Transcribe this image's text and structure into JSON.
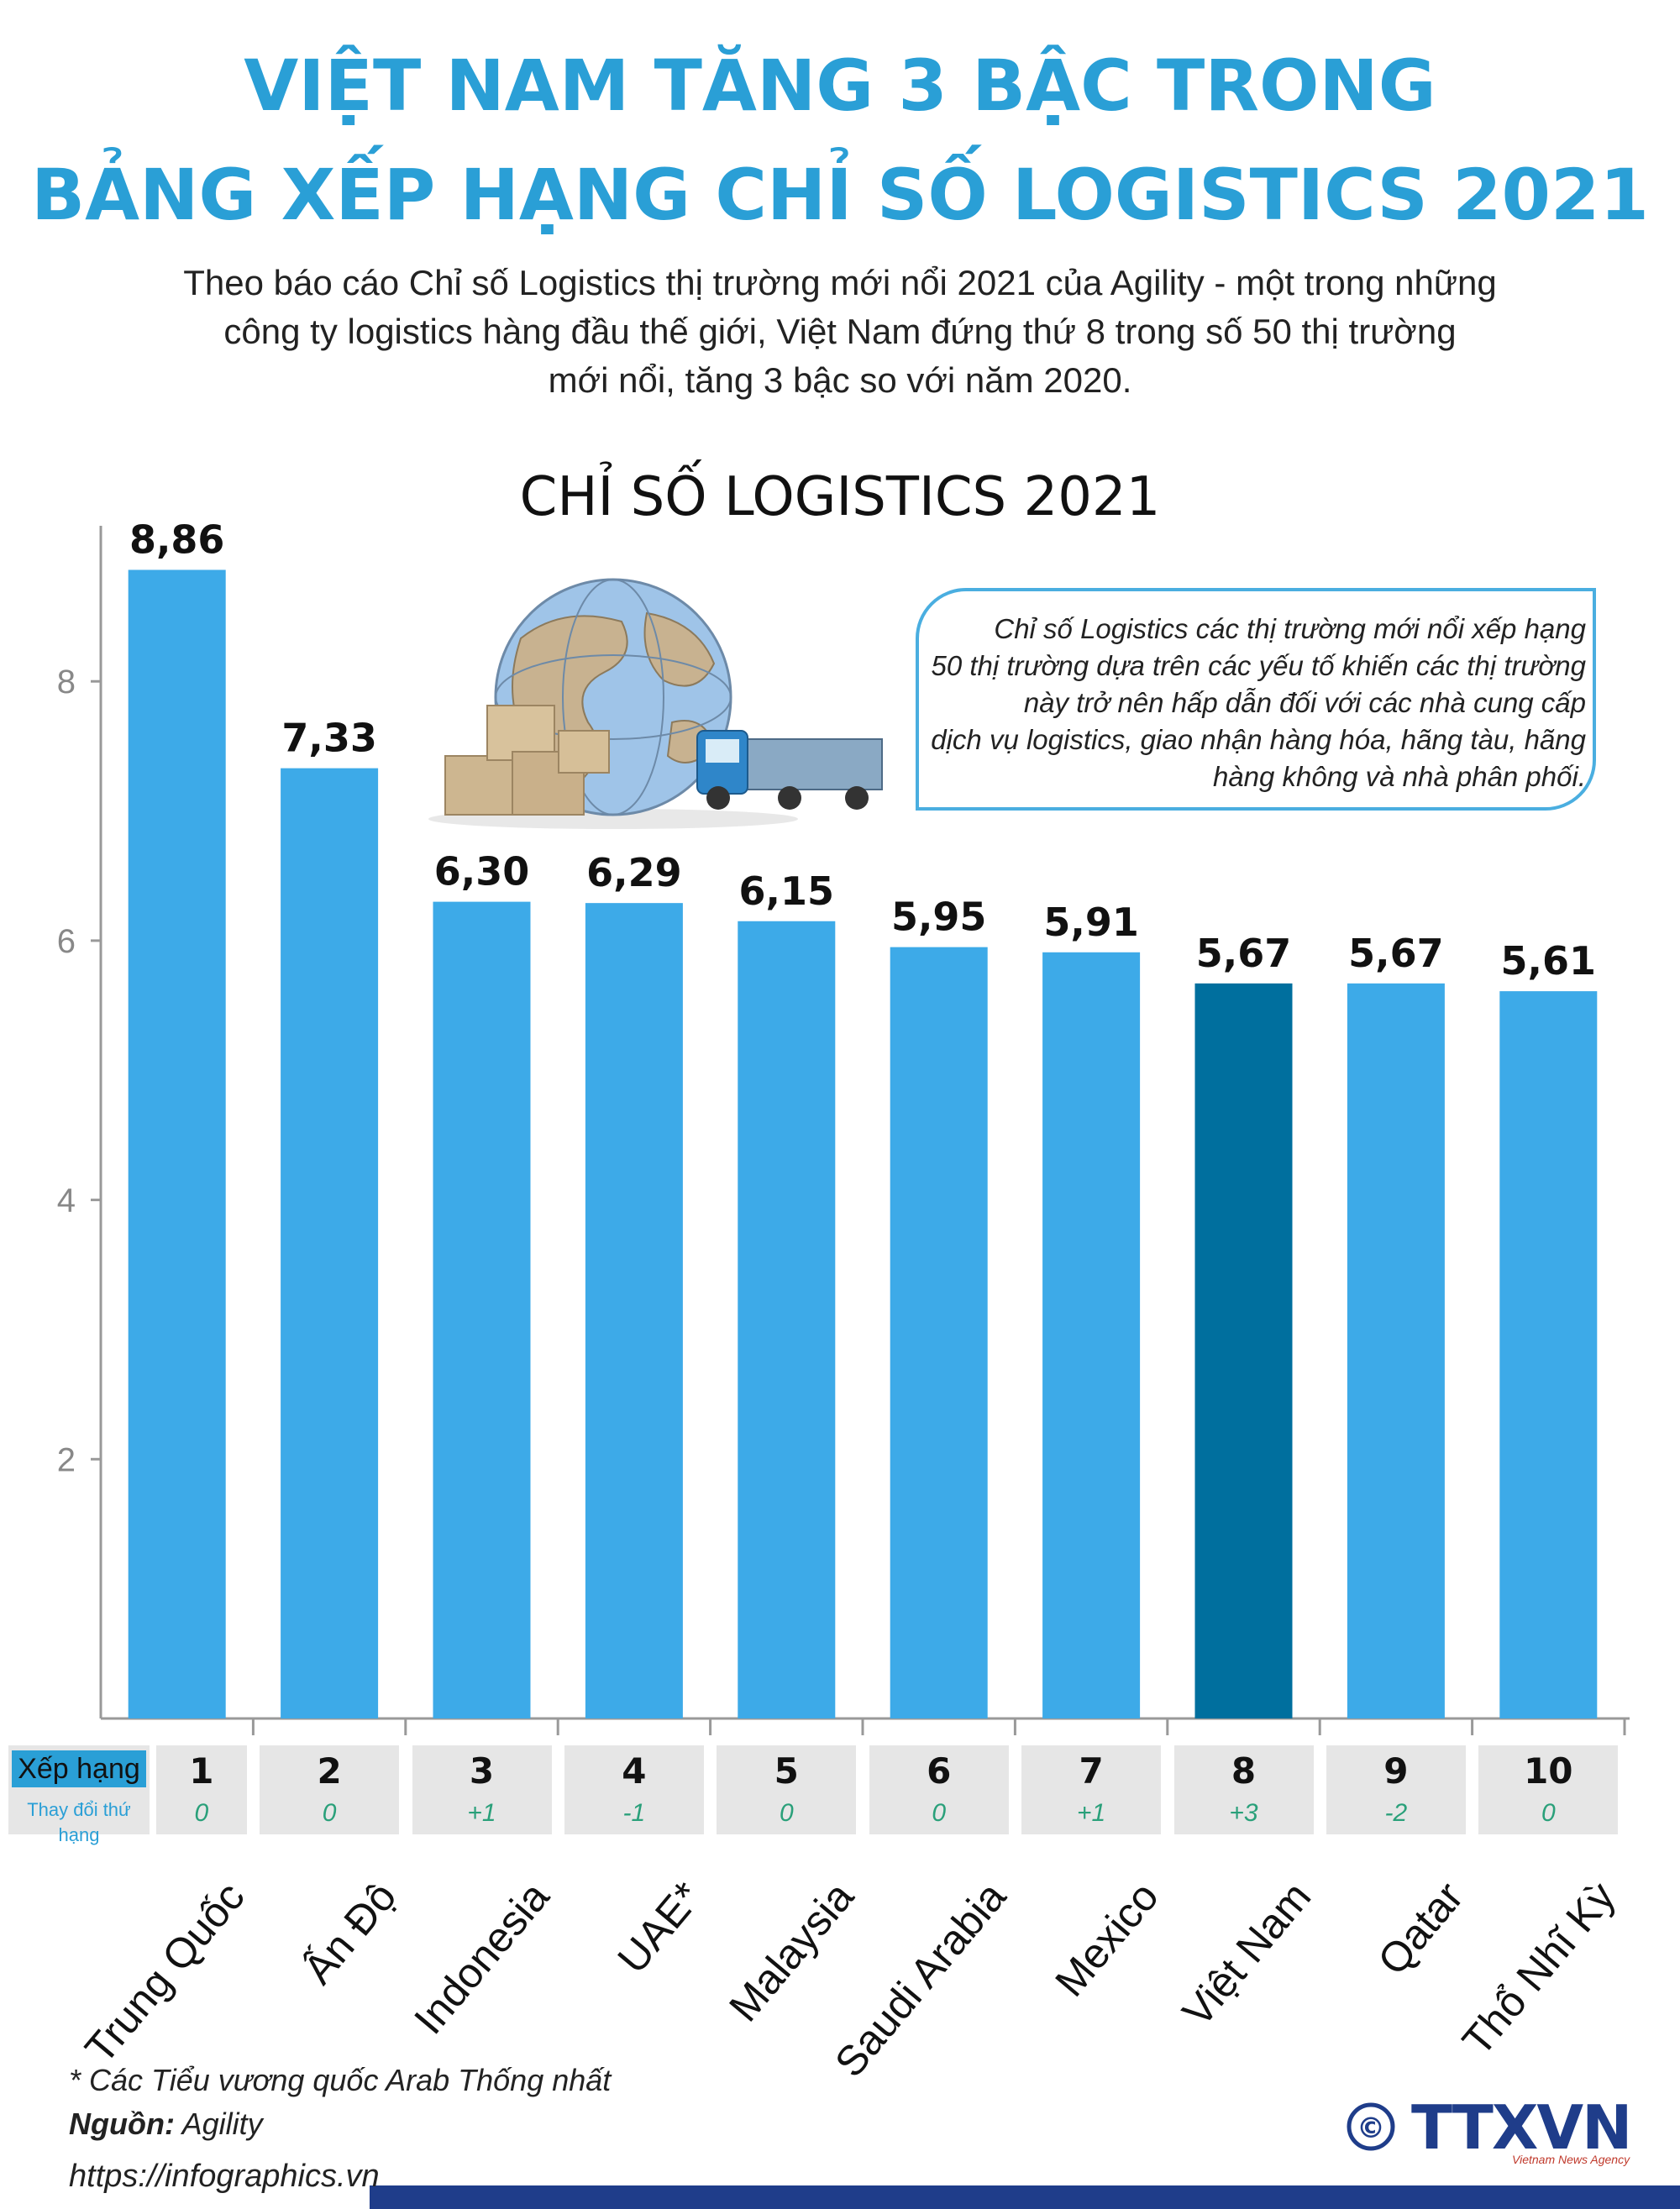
{
  "header": {
    "title_line1": "VIỆT NAM TĂNG 3 BẬC TRONG",
    "title_line2": "BẢNG XẾP HẠNG CHỈ SỐ LOGISTICS 2021",
    "intro_line1": "Theo báo cáo Chỉ số Logistics thị trường mới nổi 2021 của Agility - một trong những",
    "intro_line2": "công ty logistics hàng đầu thế giới, Việt Nam đứng thứ 8 trong số 50 thị trường",
    "intro_line3": "mới nổi, tăng 3 bậc so với năm 2020."
  },
  "note": {
    "line1": "Chỉ số Logistics các thị trường mới nổi xếp hạng",
    "line2": "50 thị trường dựa trên các yếu tố khiến các thị trường",
    "line3": "này trở nên hấp dẫn đối với các nhà cung cấp",
    "line4": "dịch vụ logistics, giao nhận hàng hóa, hãng tàu, hãng",
    "line5": "hàng không và nhà phân phối."
  },
  "chart_data": {
    "type": "bar",
    "title": "CHỈ SỐ LOGISTICS 2021",
    "categories": [
      "Trung Quốc",
      "Ấn Độ",
      "Indonesia",
      "UAE*",
      "Malaysia",
      "Saudi Arabia",
      "Mexico",
      "Việt Nam",
      "Qatar",
      "Thổ Nhĩ Kỳ"
    ],
    "values": [
      8.86,
      7.33,
      6.3,
      6.29,
      6.15,
      5.95,
      5.91,
      5.67,
      5.67,
      5.61
    ],
    "value_labels": [
      "8,86",
      "7,33",
      "6,30",
      "6,29",
      "6,15",
      "5,95",
      "5,91",
      "5,67",
      "5,67",
      "5,61"
    ],
    "highlight_index": 7,
    "ylim": [
      0,
      9.2
    ],
    "yticks": [
      2,
      4,
      6,
      8
    ],
    "grid": false,
    "colors": {
      "bar": "#3daae8",
      "highlight": "#006f9e"
    }
  },
  "rank_table": {
    "header_rank": "Xếp hạng",
    "header_change": "Thay đổi thứ hạng",
    "ranks": [
      "1",
      "2",
      "3",
      "4",
      "5",
      "6",
      "7",
      "8",
      "9",
      "10"
    ],
    "changes": [
      "0",
      "0",
      "+1",
      "-1",
      "0",
      "0",
      "+1",
      "+3",
      "-2",
      "0"
    ]
  },
  "footer": {
    "footnote": "* Các Tiểu vương quốc Arab Thống nhất",
    "source_label": "Nguồn:",
    "source_value": " Agility",
    "url": "https://infographics.vn",
    "logo_text": "TTXVN",
    "logo_sub": "Vietnam News Agency",
    "copyright": "©"
  },
  "colors": {
    "accent": "#2a9fd6",
    "navy": "#1f3d8a",
    "green_text": "#2aa07a"
  }
}
